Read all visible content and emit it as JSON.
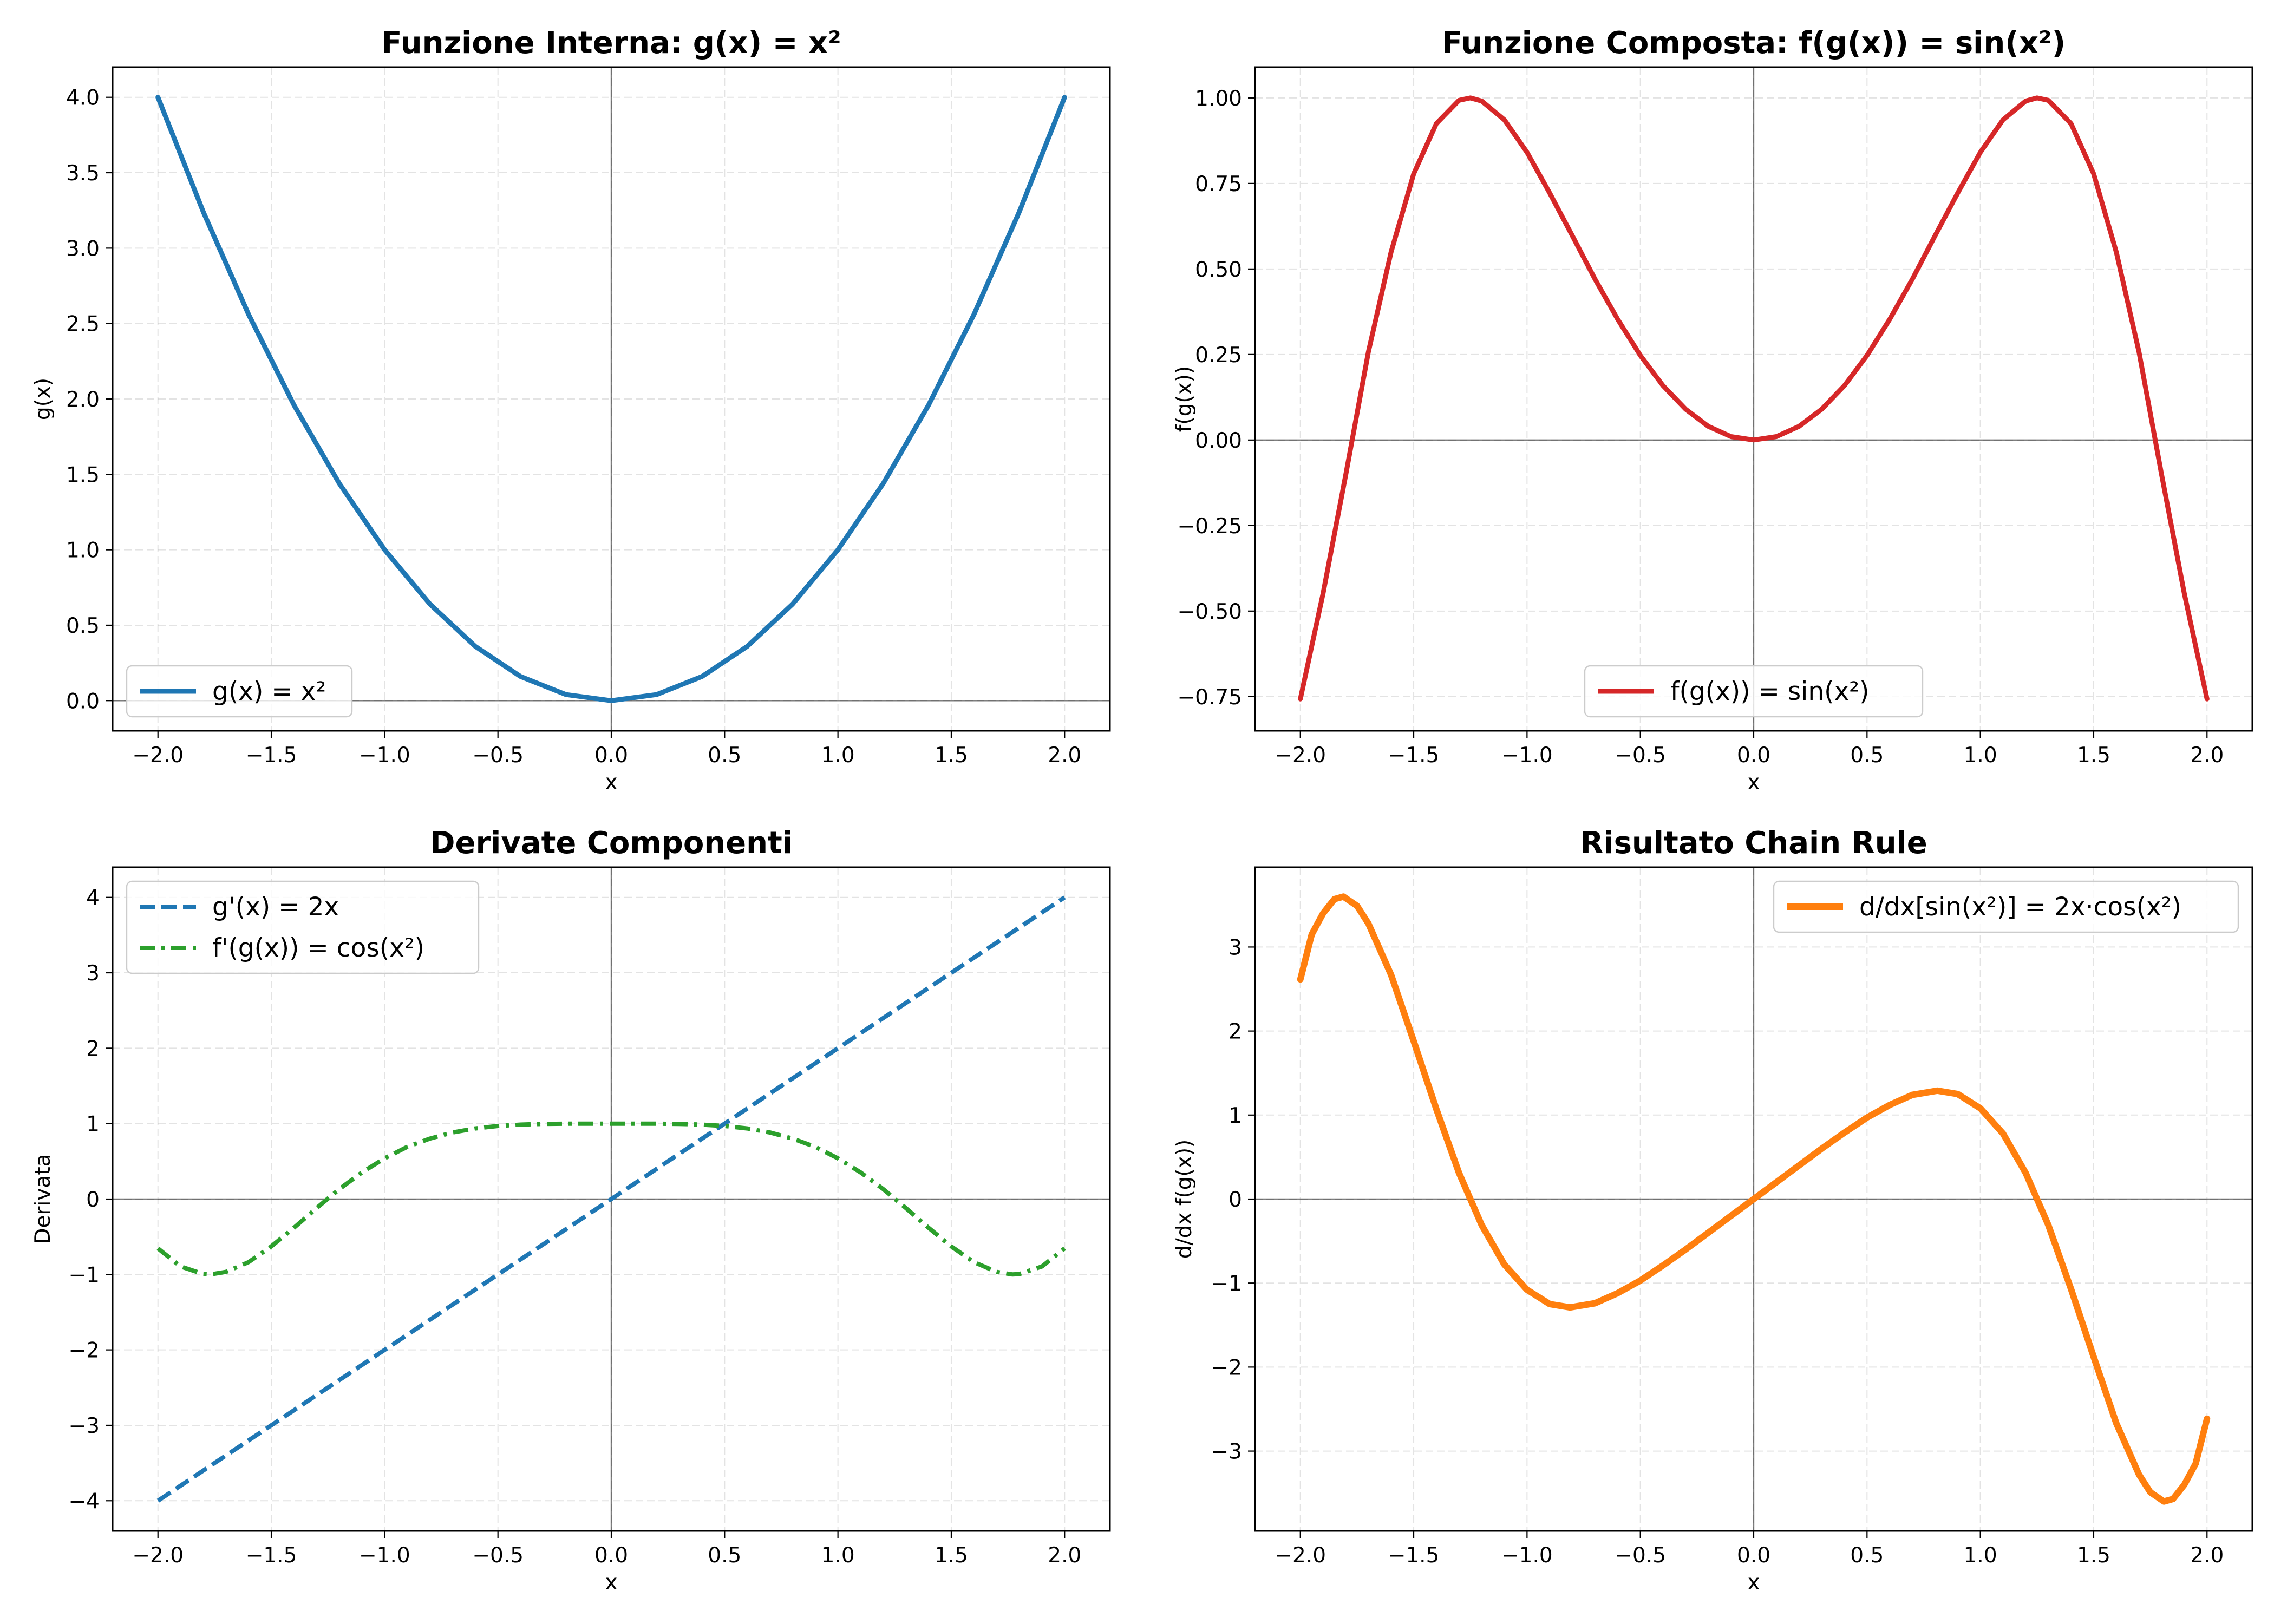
{
  "colors": {
    "blue": "#1f77b4",
    "red": "#d62728",
    "green": "#2ca02c",
    "orange": "#ff7f0e"
  },
  "chart_data": [
    {
      "type": "line",
      "title": "Funzione Interna: g(x) = x²",
      "xlabel": "x",
      "ylabel": "g(x)",
      "xlim": [
        -2.2,
        2.2
      ],
      "ylim": [
        -0.2,
        4.2
      ],
      "x_ticks": [
        "−2.0",
        "−1.5",
        "−1.0",
        "−0.5",
        "0.0",
        "0.5",
        "1.0",
        "1.5",
        "2.0"
      ],
      "y_ticks": [
        "0.0",
        "0.5",
        "1.0",
        "1.5",
        "2.0",
        "2.5",
        "3.0",
        "3.5",
        "4.0"
      ],
      "grid": true,
      "legend_position": "lower left",
      "series": [
        {
          "name": "g(x) = x²",
          "color": "#1f77b4",
          "dash": "solid",
          "x": [
            -2.0,
            -1.8,
            -1.6,
            -1.4,
            -1.2,
            -1.0,
            -0.8,
            -0.6,
            -0.4,
            -0.2,
            0.0,
            0.2,
            0.4,
            0.6,
            0.8,
            1.0,
            1.2,
            1.4,
            1.6,
            1.8,
            2.0
          ],
          "y": [
            4.0,
            3.24,
            2.56,
            1.96,
            1.44,
            1.0,
            0.64,
            0.36,
            0.16,
            0.04,
            0.0,
            0.04,
            0.16,
            0.36,
            0.64,
            1.0,
            1.44,
            1.96,
            2.56,
            3.24,
            4.0
          ]
        }
      ]
    },
    {
      "type": "line",
      "title": "Funzione Composta: f(g(x)) = sin(x²)",
      "xlabel": "x",
      "ylabel": "f(g(x))",
      "xlim": [
        -2.2,
        2.2
      ],
      "ylim": [
        -0.85,
        1.09
      ],
      "x_ticks": [
        "−2.0",
        "−1.5",
        "−1.0",
        "−0.5",
        "0.0",
        "0.5",
        "1.0",
        "1.5",
        "2.0"
      ],
      "y_ticks": [
        "−0.75",
        "−0.50",
        "−0.25",
        "0.00",
        "0.25",
        "0.50",
        "0.75",
        "1.00"
      ],
      "grid": true,
      "legend_position": "lower center",
      "series": [
        {
          "name": "f(g(x)) = sin(x²)",
          "color": "#d62728",
          "dash": "solid",
          "x": [
            -2.0,
            -1.9,
            -1.8,
            -1.7,
            -1.6,
            -1.5,
            -1.4,
            -1.3,
            -1.25,
            -1.2,
            -1.1,
            -1.0,
            -0.9,
            -0.8,
            -0.7,
            -0.6,
            -0.5,
            -0.4,
            -0.3,
            -0.2,
            -0.1,
            0.0,
            0.1,
            0.2,
            0.3,
            0.4,
            0.5,
            0.6,
            0.7,
            0.8,
            0.9,
            1.0,
            1.1,
            1.2,
            1.25,
            1.3,
            1.4,
            1.5,
            1.6,
            1.7,
            1.8,
            1.9,
            2.0
          ],
          "y": [
            -0.757,
            -0.449,
            -0.102,
            0.257,
            0.549,
            0.778,
            0.925,
            0.993,
            1.0,
            0.991,
            0.936,
            0.841,
            0.722,
            0.597,
            0.47,
            0.353,
            0.247,
            0.159,
            0.09,
            0.04,
            0.01,
            0.0,
            0.01,
            0.04,
            0.09,
            0.159,
            0.247,
            0.353,
            0.47,
            0.597,
            0.722,
            0.841,
            0.936,
            0.991,
            1.0,
            0.993,
            0.925,
            0.778,
            0.549,
            0.257,
            -0.102,
            -0.449,
            -0.757
          ]
        }
      ]
    },
    {
      "type": "line",
      "title": "Derivate Componenti",
      "xlabel": "x",
      "ylabel": "Derivata",
      "xlim": [
        -2.2,
        2.2
      ],
      "ylim": [
        -4.4,
        4.4
      ],
      "x_ticks": [
        "−2.0",
        "−1.5",
        "−1.0",
        "−0.5",
        "0.0",
        "0.5",
        "1.0",
        "1.5",
        "2.0"
      ],
      "y_ticks": [
        "−4",
        "−3",
        "−2",
        "−1",
        "0",
        "1",
        "2",
        "3",
        "4"
      ],
      "grid": true,
      "legend_position": "upper left",
      "series": [
        {
          "name": "g'(x) = 2x",
          "color": "#1f77b4",
          "dash": "dashed",
          "x": [
            -2.0,
            2.0
          ],
          "y": [
            -4.0,
            4.0
          ]
        },
        {
          "name": "f'(g(x)) = cos(x²)",
          "color": "#2ca02c",
          "dash": "dashdot",
          "x": [
            -2.0,
            -1.9,
            -1.8,
            -1.77,
            -1.7,
            -1.6,
            -1.5,
            -1.4,
            -1.3,
            -1.2,
            -1.1,
            -1.0,
            -0.9,
            -0.8,
            -0.7,
            -0.6,
            -0.5,
            -0.4,
            -0.3,
            -0.2,
            -0.1,
            0.0,
            0.1,
            0.2,
            0.3,
            0.4,
            0.5,
            0.6,
            0.7,
            0.8,
            0.9,
            1.0,
            1.1,
            1.2,
            1.3,
            1.4,
            1.5,
            1.6,
            1.7,
            1.77,
            1.8,
            1.9,
            2.0
          ],
          "y": [
            -0.654,
            -0.894,
            -0.995,
            -1.0,
            -0.966,
            -0.836,
            -0.628,
            -0.381,
            -0.12,
            0.131,
            0.353,
            0.54,
            0.692,
            0.802,
            0.883,
            0.936,
            0.969,
            0.987,
            0.996,
            0.999,
            1.0,
            1.0,
            1.0,
            0.999,
            0.996,
            0.987,
            0.969,
            0.936,
            0.883,
            0.802,
            0.692,
            0.54,
            0.353,
            0.131,
            -0.12,
            -0.381,
            -0.628,
            -0.836,
            -0.966,
            -1.0,
            -0.995,
            -0.894,
            -0.654
          ]
        }
      ]
    },
    {
      "type": "line",
      "title": "Risultato Chain Rule",
      "xlabel": "x",
      "ylabel": "d/dx f(g(x))",
      "xlim": [
        -2.2,
        2.2
      ],
      "ylim": [
        -3.95,
        3.95
      ],
      "x_ticks": [
        "−2.0",
        "−1.5",
        "−1.0",
        "−0.5",
        "0.0",
        "0.5",
        "1.0",
        "1.5",
        "2.0"
      ],
      "y_ticks": [
        "−3",
        "−2",
        "−1",
        "0",
        "1",
        "2",
        "3"
      ],
      "grid": true,
      "legend_position": "upper right",
      "series": [
        {
          "name": "d/dx[sin(x²)] = 2x·cos(x²)",
          "color": "#ff7f0e",
          "dash": "solid",
          "x": [
            -2.0,
            -1.95,
            -1.9,
            -1.85,
            -1.81,
            -1.75,
            -1.7,
            -1.6,
            -1.5,
            -1.4,
            -1.3,
            -1.2,
            -1.1,
            -1.0,
            -0.9,
            -0.81,
            -0.7,
            -0.6,
            -0.5,
            -0.4,
            -0.3,
            -0.2,
            -0.1,
            0.0,
            0.1,
            0.2,
            0.3,
            0.4,
            0.5,
            0.6,
            0.7,
            0.81,
            0.9,
            1.0,
            1.1,
            1.2,
            1.3,
            1.4,
            1.5,
            1.6,
            1.7,
            1.75,
            1.81,
            1.85,
            1.9,
            1.95,
            2.0
          ],
          "y": [
            2.615,
            3.15,
            3.4,
            3.57,
            3.6,
            3.49,
            3.28,
            2.67,
            1.88,
            1.07,
            0.31,
            -0.31,
            -0.78,
            -1.08,
            -1.25,
            -1.29,
            -1.24,
            -1.12,
            -0.97,
            -0.79,
            -0.6,
            -0.4,
            -0.2,
            0.0,
            0.2,
            0.4,
            0.6,
            0.79,
            0.97,
            1.12,
            1.24,
            1.29,
            1.25,
            1.08,
            0.78,
            0.31,
            -0.31,
            -1.07,
            -1.88,
            -2.67,
            -3.28,
            -3.49,
            -3.6,
            -3.57,
            -3.4,
            -3.15,
            -2.615
          ]
        }
      ]
    }
  ]
}
